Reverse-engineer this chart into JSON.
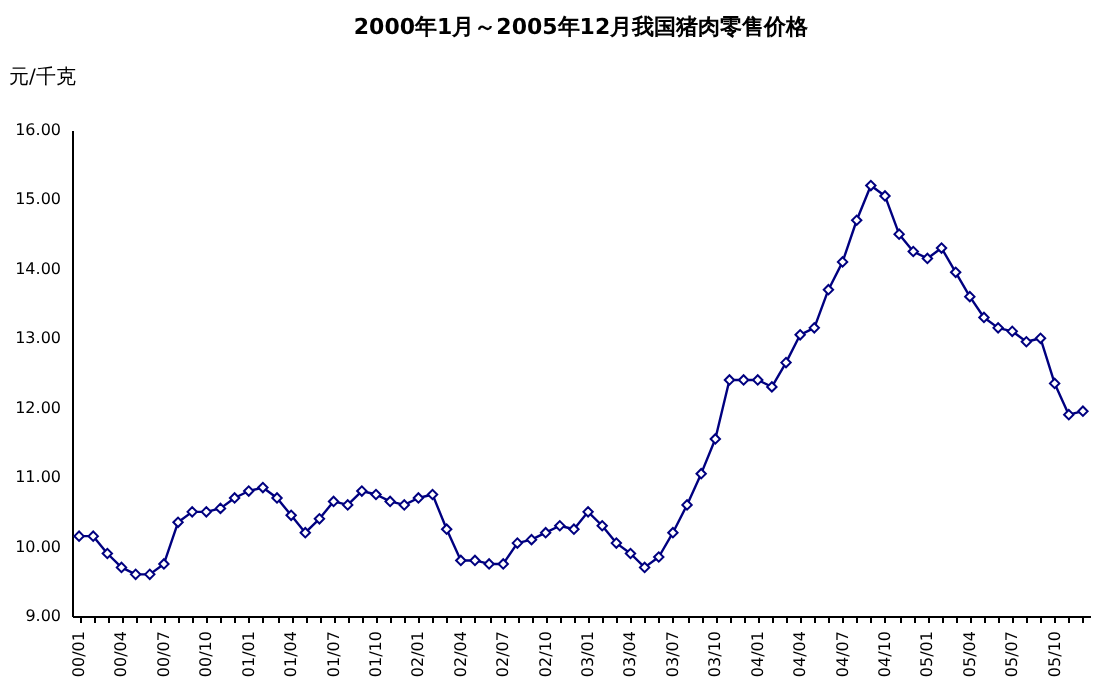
{
  "chart_data": {
    "type": "line",
    "title": "2000年1月～2005年12月我国猪肉零售价格",
    "ylabel": "元/千克",
    "categories": [
      "00/01",
      null,
      null,
      "00/04",
      null,
      null,
      "00/07",
      null,
      null,
      "00/10",
      null,
      null,
      "01/01",
      null,
      null,
      "01/04",
      null,
      null,
      "01/07",
      null,
      null,
      "01/10",
      null,
      null,
      "02/01",
      null,
      null,
      "02/04",
      null,
      null,
      "02/07",
      null,
      null,
      "02/10",
      null,
      null,
      "03/01",
      null,
      null,
      "03/04",
      null,
      null,
      "03/07",
      null,
      null,
      "03/10",
      null,
      null,
      "04/01",
      null,
      null,
      "04/04",
      null,
      null,
      "04/07",
      null,
      null,
      "04/10",
      null,
      null,
      "05/01",
      null,
      null,
      "05/04",
      null,
      null,
      "05/07",
      null,
      null,
      "05/10",
      null,
      null
    ],
    "series": [
      {
        "color": "#000080",
        "values": [
          10.15,
          10.15,
          9.9,
          9.7,
          9.6,
          9.6,
          9.75,
          10.35,
          10.5,
          10.5,
          10.55,
          10.7,
          10.8,
          10.85,
          10.7,
          10.45,
          10.2,
          10.4,
          10.65,
          10.6,
          10.8,
          10.75,
          10.65,
          10.6,
          10.7,
          10.75,
          10.25,
          9.8,
          9.8,
          9.75,
          9.75,
          10.05,
          10.1,
          10.2,
          10.3,
          10.25,
          10.5,
          10.3,
          10.05,
          9.9,
          9.7,
          9.85,
          10.2,
          10.6,
          11.05,
          11.55,
          12.4,
          12.4,
          12.4,
          12.3,
          12.65,
          13.05,
          13.15,
          13.7,
          14.1,
          14.7,
          15.2,
          15.05,
          14.5,
          14.25,
          14.15,
          14.3,
          13.95,
          13.6,
          13.3,
          13.15,
          13.1,
          12.95,
          13.0,
          12.35,
          11.9,
          11.95
        ]
      }
    ],
    "ylim": [
      9,
      16
    ],
    "yticks": [
      {
        "value": 9,
        "label": "9.00"
      },
      {
        "value": 10,
        "label": "10.00"
      },
      {
        "value": 11,
        "label": "11.00"
      },
      {
        "value": 12,
        "label": "12.00"
      },
      {
        "value": 13,
        "label": "13.00"
      },
      {
        "value": 14,
        "label": "14.00"
      },
      {
        "value": 15,
        "label": "15.00"
      },
      {
        "value": 16,
        "label": "16.00"
      }
    ],
    "marker": "diamond",
    "line_style": "solid",
    "grid": false
  }
}
